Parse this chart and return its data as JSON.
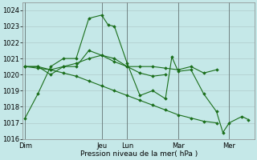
{
  "title": "",
  "xlabel": "Pression niveau de la mer( hPa )",
  "ylabel": "",
  "background_color": "#c5e8e8",
  "grid_color": "#b0cccc",
  "line_color": "#1a6e1a",
  "ylim": [
    1016,
    1024.5
  ],
  "yticks": [
    1016,
    1017,
    1018,
    1019,
    1020,
    1021,
    1022,
    1023,
    1024
  ],
  "day_labels": [
    "Dim",
    "",
    "Jeu",
    "Lun",
    "",
    "Mar",
    "",
    "Mer"
  ],
  "day_positions": [
    0,
    1,
    2,
    3,
    4,
    5,
    6,
    7
  ],
  "vline_positions": [
    0,
    2,
    3,
    5,
    7
  ],
  "vline_labels": [
    "Dim",
    "Jeu",
    "Lun",
    "Mar",
    "Mer"
  ],
  "num_days": 8,
  "lines": [
    {
      "x": [
        0.0,
        0.25,
        0.5,
        0.75,
        1.0,
        1.25,
        1.5,
        1.625,
        1.75,
        2.0,
        2.25,
        2.5,
        2.75,
        2.875,
        3.0,
        3.25,
        3.5,
        3.75,
        3.875,
        4.0,
        4.25,
        4.375
      ],
      "y": [
        1017.3,
        1018.8,
        1020.5,
        1021.0,
        1021.0,
        1023.5,
        1023.7,
        1023.1,
        1023.0,
        1020.7,
        1018.7,
        1019.0,
        1018.5,
        1021.1,
        1020.2,
        1020.3,
        1018.8,
        1017.7,
        1016.4,
        1017.0,
        1017.4,
        1017.2
      ]
    },
    {
      "x": [
        0.0,
        0.25,
        0.5,
        0.75,
        1.0,
        1.25,
        1.5,
        1.75,
        2.0,
        2.25,
        2.5,
        2.75,
        3.0,
        3.25,
        3.5,
        3.75
      ],
      "y": [
        1020.5,
        1020.5,
        1020.0,
        1020.5,
        1020.5,
        1021.5,
        1021.2,
        1020.8,
        1020.5,
        1020.5,
        1020.5,
        1020.4,
        1020.3,
        1020.5,
        1020.1,
        1020.3
      ]
    },
    {
      "x": [
        0.0,
        0.25,
        0.5,
        0.75,
        1.0,
        1.25,
        1.5,
        1.75,
        2.0,
        2.25,
        2.5,
        2.75
      ],
      "y": [
        1020.5,
        1020.5,
        1020.3,
        1020.5,
        1020.7,
        1021.0,
        1021.2,
        1021.0,
        1020.5,
        1020.1,
        1019.9,
        1020.0
      ]
    },
    {
      "x": [
        0.0,
        0.25,
        0.5,
        0.75,
        1.0,
        1.25,
        1.5,
        1.75,
        2.0,
        2.25,
        2.5,
        2.75,
        3.0,
        3.25,
        3.5,
        3.75
      ],
      "y": [
        1020.5,
        1020.4,
        1020.3,
        1020.1,
        1019.9,
        1019.6,
        1019.3,
        1019.0,
        1018.7,
        1018.4,
        1018.1,
        1017.8,
        1017.5,
        1017.3,
        1017.1,
        1017.0
      ]
    }
  ]
}
